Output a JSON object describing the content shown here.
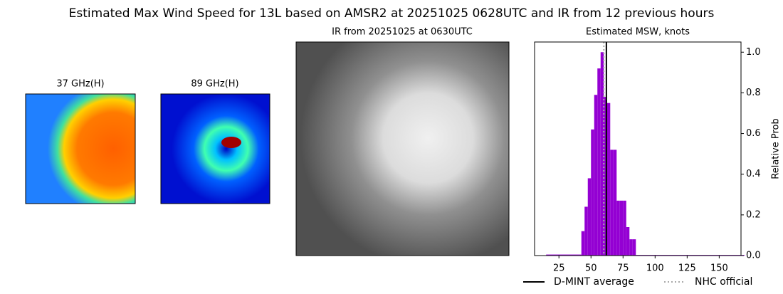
{
  "title": "Estimated Max Wind Speed for 13L based on AMSR2 at 20251025 0628UTC and IR from 12 previous hours",
  "panels": [
    {
      "title": "37 GHz(H)"
    },
    {
      "title": "89 GHz(H)"
    },
    {
      "title": "IR from 20251025 at 0630UTC"
    }
  ],
  "chart_data": {
    "type": "histogram",
    "title": "Estimated MSW, knots",
    "ylabel": "Relative Prob",
    "bins": [
      15,
      42.5,
      45,
      47.5,
      50,
      52.5,
      55,
      57.5,
      60,
      62.5,
      65,
      67.5,
      70,
      72.5,
      75,
      77.5,
      80,
      82.5,
      85,
      170
    ],
    "values": [
      0.005,
      0.12,
      0.24,
      0.38,
      0.62,
      0.79,
      0.92,
      1.0,
      0.78,
      0.75,
      0.52,
      0.52,
      0.27,
      0.27,
      0.27,
      0.14,
      0.08,
      0.08,
      0.003
    ],
    "color": "#9400d3",
    "xlim": [
      6,
      167
    ],
    "ylim": [
      0,
      1.05
    ],
    "xticks": [
      25,
      50,
      75,
      100,
      125,
      150
    ],
    "yticks": [
      {
        "value": 0,
        "label": "0.0"
      },
      {
        "value": 0.2,
        "label": "0.2"
      },
      {
        "value": 0.4,
        "label": "0.4"
      },
      {
        "value": 0.6,
        "label": "0.6"
      },
      {
        "value": 0.8,
        "label": "0.8"
      },
      {
        "value": 1,
        "label": "1.0"
      }
    ],
    "lines": [
      {
        "name": "D-MINT average",
        "value": 62,
        "color": "#000000",
        "style": "solid"
      },
      {
        "name": "NHC official",
        "value": 60,
        "color": "#aaaaaa",
        "style": "dotted"
      }
    ]
  }
}
